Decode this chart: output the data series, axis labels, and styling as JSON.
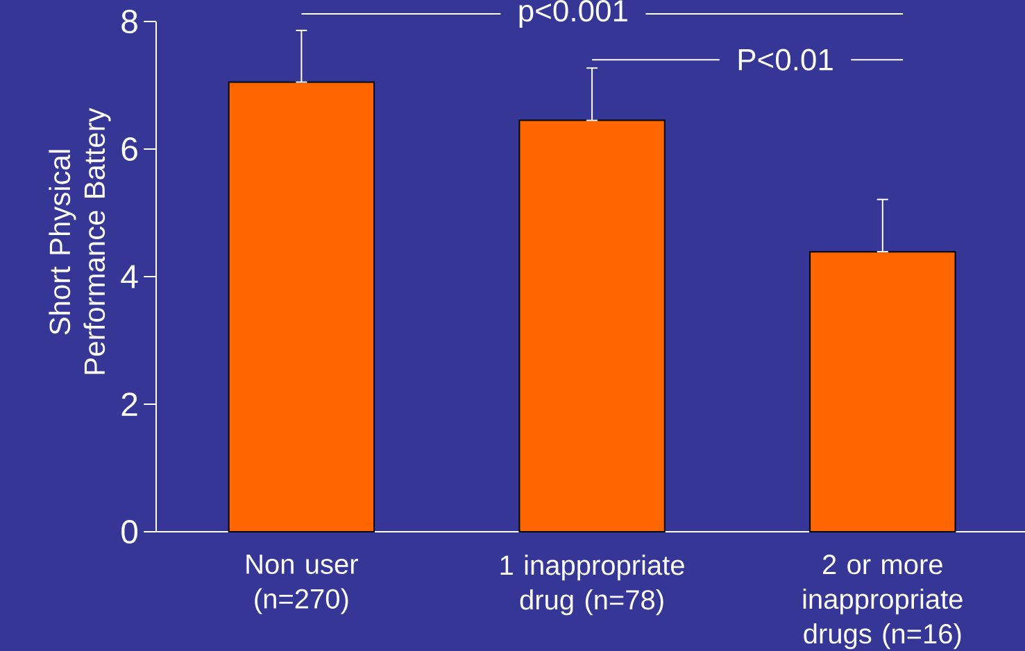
{
  "chart_data": {
    "type": "bar",
    "ylabel": "Short Physical Performance Battery",
    "categories": [
      "Non user (n=270)",
      "1 inappropriate drug (n=78)",
      "2 or more inappropriate drugs (n=16)"
    ],
    "values": [
      7.05,
      6.45,
      4.39
    ],
    "errors": [
      [
        7.05,
        7.86
      ],
      [
        6.45,
        7.27
      ],
      [
        4.39,
        5.21
      ]
    ],
    "color": "#ff6600",
    "ylim": [
      0,
      8
    ],
    "yticks": [
      0,
      2,
      4,
      6,
      8
    ],
    "grid": false,
    "annotations": [
      "p<0.001",
      "P<0.01"
    ]
  }
}
